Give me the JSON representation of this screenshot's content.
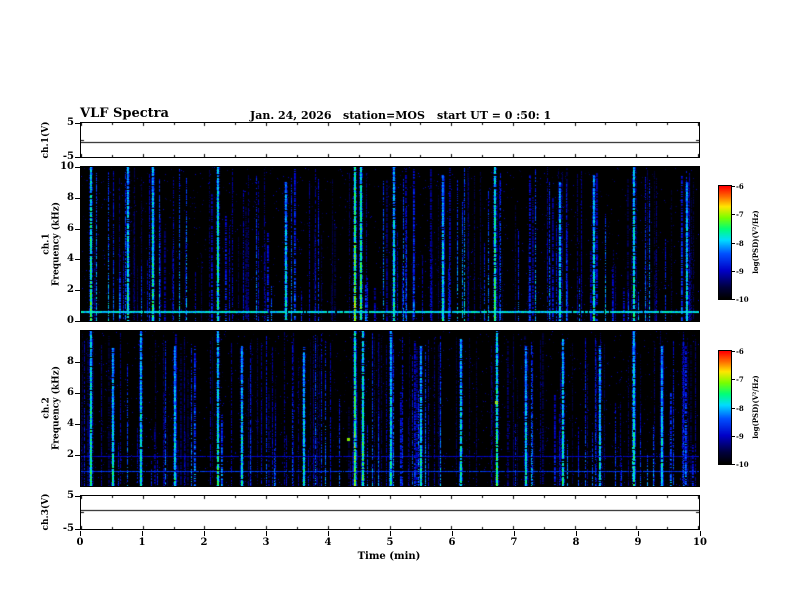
{
  "header": {
    "title": "VLF Spectra",
    "date": "Jan. 24, 2026",
    "station": "station=MOS",
    "start_ut": "start UT = 0 :50: 1"
  },
  "xaxis": {
    "label": "Time (min)",
    "min": 0,
    "max": 10,
    "ticks": [
      "0",
      "1",
      "2",
      "3",
      "4",
      "5",
      "6",
      "7",
      "8",
      "9",
      "10"
    ]
  },
  "panels": {
    "ch1_wave": {
      "label": "ch.1(V)",
      "yticks": [
        {
          "v": 5,
          "t": "5"
        },
        {
          "v": -5,
          "t": "-5"
        }
      ]
    },
    "ch1_spec": {
      "label_ch": "ch.1",
      "label_axis": "Frequency (kHz)",
      "yticks": [
        {
          "v": 10,
          "t": "10"
        },
        {
          "v": 8,
          "t": "8"
        },
        {
          "v": 6,
          "t": "6"
        },
        {
          "v": 4,
          "t": "4"
        },
        {
          "v": 2,
          "t": "2"
        },
        {
          "v": 0,
          "t": "0"
        }
      ]
    },
    "ch2_spec": {
      "label_ch": "ch.2",
      "label_axis": "Frequency (kHz)",
      "yticks": [
        {
          "v": 8,
          "t": "8"
        },
        {
          "v": 6,
          "t": "6"
        },
        {
          "v": 4,
          "t": "4"
        },
        {
          "v": 2,
          "t": "2"
        }
      ]
    },
    "ch3_wave": {
      "label": "ch.3(V)",
      "yticks": [
        {
          "v": 5,
          "t": "5"
        },
        {
          "v": -5,
          "t": "-5"
        }
      ]
    }
  },
  "colorbar": {
    "label": "log(PSD)(V²/Hz)",
    "ticks": [
      "-6",
      "-7",
      "-8",
      "-9",
      "-10"
    ],
    "min": -10,
    "max": -6
  },
  "colormap_stops": [
    [
      0.0,
      "#000000"
    ],
    [
      0.1,
      "#00003c"
    ],
    [
      0.25,
      "#0000c8"
    ],
    [
      0.4,
      "#0050ff"
    ],
    [
      0.52,
      "#00dcff"
    ],
    [
      0.62,
      "#00ff78"
    ],
    [
      0.72,
      "#78ff00"
    ],
    [
      0.82,
      "#ffe600"
    ],
    [
      0.9,
      "#ff7800"
    ],
    [
      1.0,
      "#ff0000"
    ]
  ],
  "chart_data": [
    {
      "type": "line",
      "name": "ch1_wave",
      "title": "ch.1 voltage monitor",
      "ylabel": "ch.1(V)",
      "xlim": [
        0,
        10
      ],
      "ylim": [
        -5,
        5
      ],
      "x": [
        0,
        10
      ],
      "y": [
        -0.8,
        -0.8
      ],
      "line_color": "#000000",
      "description": "flat trace near 0 V across full record"
    },
    {
      "type": "heatmap",
      "name": "ch1_spec",
      "title": "ch.1 VLF spectrogram",
      "xlabel": "Time (min)",
      "ylabel": "ch.1 Frequency (kHz)",
      "zlabel": "log(PSD)(V²/Hz)",
      "xlim": [
        0,
        10
      ],
      "ylim": [
        0,
        10
      ],
      "zlim": [
        -10,
        -6
      ],
      "background_level": -10,
      "horizontal_lines": [
        {
          "freq": 0.6,
          "level": -7.9,
          "px": 2
        }
      ],
      "events": [
        {
          "t": 0.15,
          "fmax": 10,
          "level": -6.9
        },
        {
          "t": 0.75,
          "fmax": 10,
          "level": -7.2
        },
        {
          "t": 1.15,
          "fmax": 10,
          "level": -7.1
        },
        {
          "t": 2.2,
          "fmax": 10,
          "level": -7.0
        },
        {
          "t": 3.3,
          "fmax": 9,
          "level": -7.3
        },
        {
          "t": 4.42,
          "fmax": 10,
          "level": -6.5
        },
        {
          "t": 4.52,
          "fmax": 10,
          "level": -6.8
        },
        {
          "t": 5.05,
          "fmax": 10,
          "level": -7.2
        },
        {
          "t": 5.85,
          "fmax": 9.5,
          "level": -7.3
        },
        {
          "t": 6.7,
          "fmax": 10,
          "level": -6.9
        },
        {
          "t": 7.75,
          "fmax": 9,
          "level": -7.3
        },
        {
          "t": 8.3,
          "fmax": 9.5,
          "level": -7.2
        },
        {
          "t": 8.95,
          "fmax": 10,
          "level": -7.1
        },
        {
          "t": 9.8,
          "fmax": 9,
          "level": -7.3
        }
      ],
      "hot_spots": [],
      "random_streaks": {
        "count": 150,
        "seed": 11,
        "fmax_short_range": [
          1.5,
          8.5
        ],
        "level_range": [
          -9.4,
          -7.5
        ]
      },
      "speckle": {
        "count": 1300,
        "seed": 21,
        "level_range": [
          -9.8,
          -9.0
        ]
      }
    },
    {
      "type": "heatmap",
      "name": "ch2_spec",
      "title": "ch.2 VLF spectrogram",
      "xlabel": "Time (min)",
      "ylabel": "ch.2 Frequency (kHz)",
      "zlabel": "log(PSD)(V²/Hz)",
      "xlim": [
        0,
        10
      ],
      "ylim": [
        0,
        10
      ],
      "zlim": [
        -10,
        -6
      ],
      "background_level": -10,
      "horizontal_lines": [
        {
          "freq": 1.9,
          "level": -9.0,
          "px": 1
        },
        {
          "freq": 0.9,
          "level": -8.6,
          "px": 1
        }
      ],
      "events": [
        {
          "t": 0.15,
          "fmax": 10,
          "level": -7.0
        },
        {
          "t": 0.5,
          "fmax": 9,
          "level": -7.3
        },
        {
          "t": 0.95,
          "fmax": 10,
          "level": -7.2
        },
        {
          "t": 1.5,
          "fmax": 9,
          "level": -7.3
        },
        {
          "t": 2.2,
          "fmax": 10,
          "level": -7.1
        },
        {
          "t": 2.6,
          "fmax": 9,
          "level": -7.3
        },
        {
          "t": 3.6,
          "fmax": 9,
          "level": -7.3
        },
        {
          "t": 4.42,
          "fmax": 10,
          "level": -6.6
        },
        {
          "t": 4.55,
          "fmax": 10,
          "level": -6.9
        },
        {
          "t": 5.0,
          "fmax": 10,
          "level": -7.2
        },
        {
          "t": 5.5,
          "fmax": 9,
          "level": -7.3
        },
        {
          "t": 6.15,
          "fmax": 9.5,
          "level": -7.2
        },
        {
          "t": 6.72,
          "fmax": 10,
          "level": -6.9
        },
        {
          "t": 7.2,
          "fmax": 9,
          "level": -7.3
        },
        {
          "t": 7.8,
          "fmax": 9.5,
          "level": -7.2
        },
        {
          "t": 8.4,
          "fmax": 9,
          "level": -7.3
        },
        {
          "t": 8.95,
          "fmax": 10,
          "level": -7.1
        },
        {
          "t": 9.4,
          "fmax": 9,
          "level": -7.3
        }
      ],
      "hot_spots": [
        {
          "t": 6.72,
          "f": 5.4,
          "level": -6.15
        },
        {
          "t": 4.32,
          "f": 3.0,
          "level": -6.4
        }
      ],
      "random_streaks": {
        "count": 170,
        "seed": 31,
        "fmax_short_range": [
          1.5,
          8.5
        ],
        "level_range": [
          -9.4,
          -7.5
        ]
      },
      "speckle": {
        "count": 1400,
        "seed": 41,
        "level_range": [
          -9.8,
          -9.0
        ]
      }
    },
    {
      "type": "line",
      "name": "ch3_wave",
      "title": "ch.3 voltage monitor",
      "ylabel": "ch.3(V)",
      "xlim": [
        0,
        10
      ],
      "ylim": [
        -5,
        5
      ],
      "x": [
        0,
        10
      ],
      "y": [
        0.6,
        0.6
      ],
      "line_color": "#000000",
      "description": "flat trace near 0 V across full record"
    }
  ]
}
